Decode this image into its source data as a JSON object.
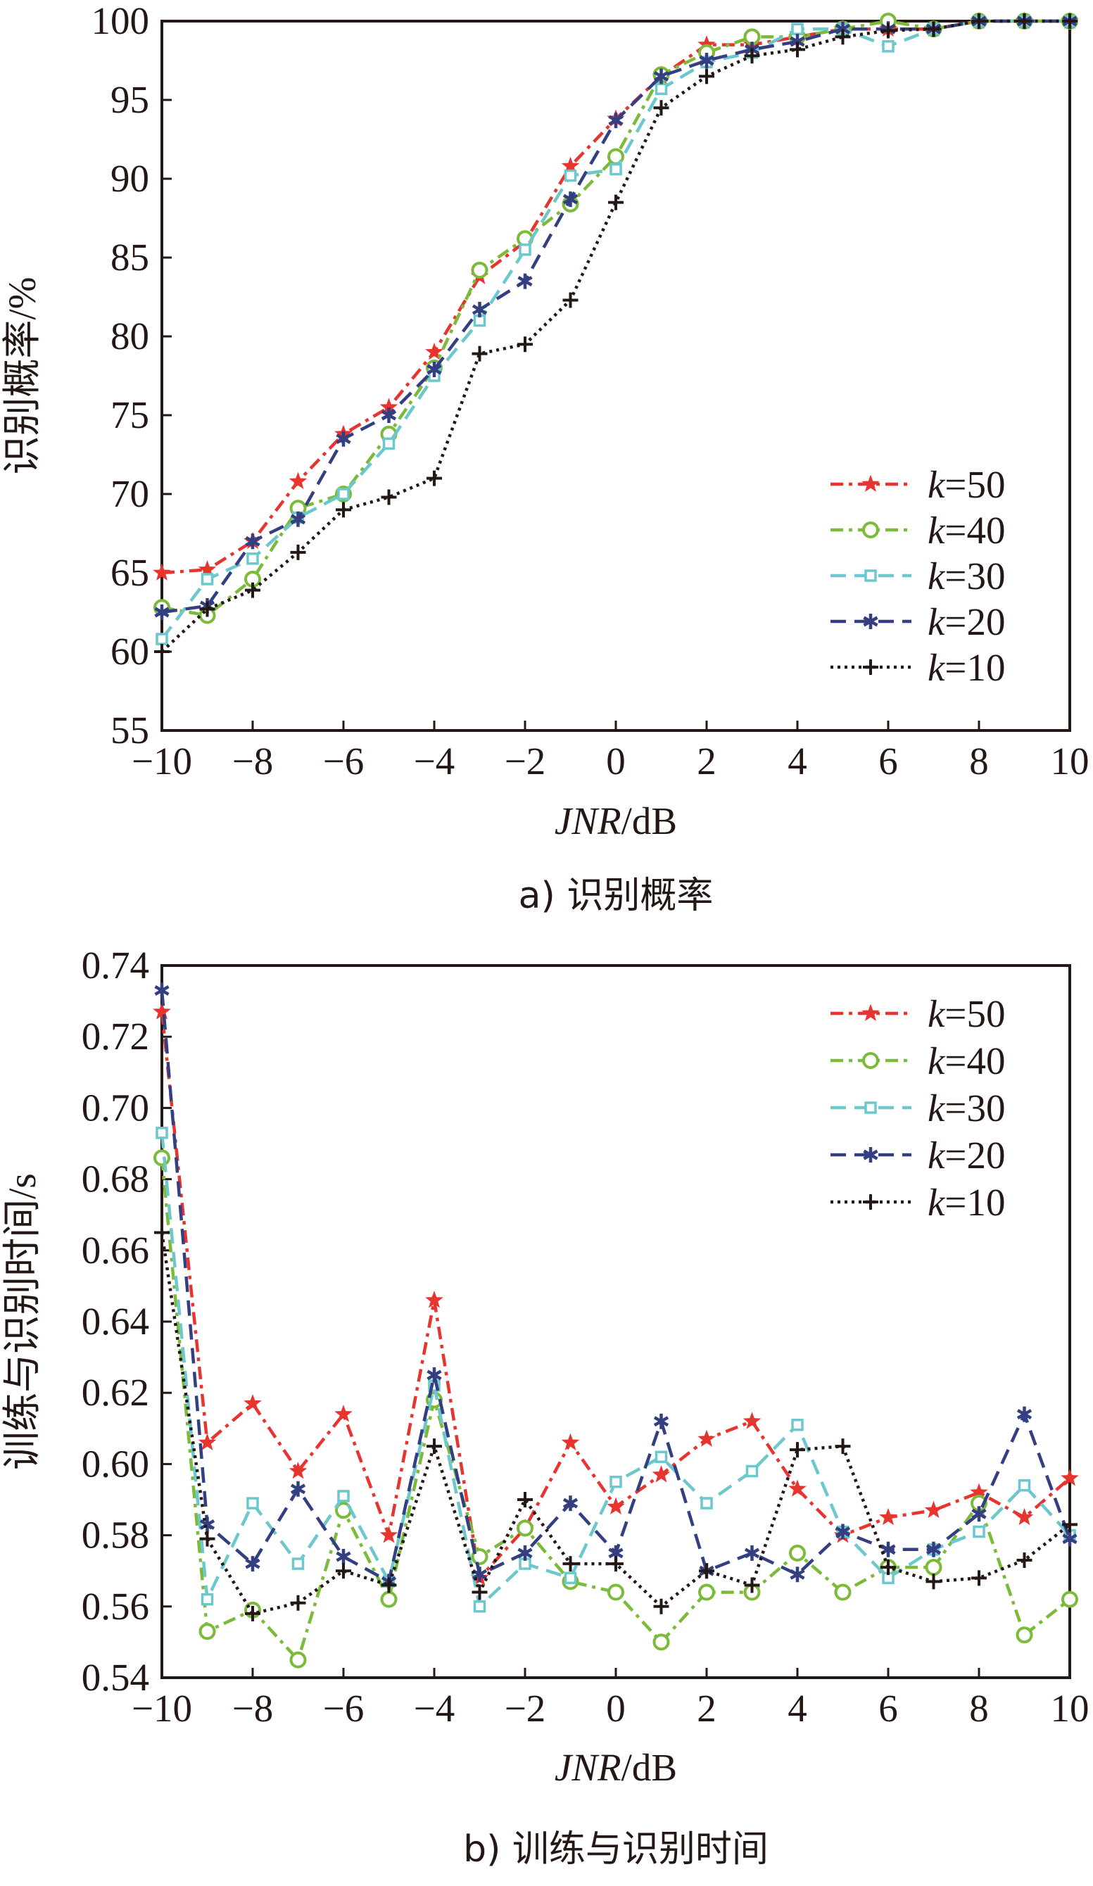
{
  "chart_data": [
    {
      "type": "line",
      "caption": "a) 识别概率",
      "ylabel": "识别概率/%",
      "xlabel_italic": "JNR",
      "xlabel_rest": "/dB",
      "xlim": [
        -10,
        10
      ],
      "ylim": [
        55,
        100
      ],
      "xticks": [
        "−10",
        "−8",
        "−6",
        "−4",
        "−2",
        "0",
        "2",
        "4",
        "6",
        "8",
        "10"
      ],
      "yticks": [
        "55",
        "60",
        "65",
        "70",
        "75",
        "80",
        "85",
        "90",
        "95",
        "100"
      ],
      "legend_position": "lower-right",
      "x": [
        -10,
        -9,
        -8,
        -7,
        -6,
        -5,
        -4,
        -3,
        -2,
        -1,
        0,
        1,
        2,
        3,
        4,
        5,
        6,
        7,
        8,
        9,
        10
      ],
      "series": [
        {
          "name_var": "k",
          "name_val": "=50",
          "color": "#e8342f",
          "marker": "star",
          "dash": "18,8,5,8",
          "values": [
            65.0,
            65.2,
            67.0,
            70.8,
            73.8,
            75.5,
            79.0,
            83.8,
            86.0,
            90.8,
            93.8,
            96.5,
            98.5,
            98.5,
            99.0,
            99.5,
            99.5,
            99.5,
            100,
            100,
            100
          ]
        },
        {
          "name_var": "k",
          "name_val": "=40",
          "color": "#7cba3a",
          "marker": "circle",
          "dash": "18,8,5,8",
          "values": [
            62.8,
            62.3,
            64.6,
            69.1,
            70.0,
            73.8,
            78.0,
            84.2,
            86.2,
            88.4,
            91.4,
            96.6,
            98.0,
            99.0,
            99.0,
            99.5,
            100,
            99.5,
            100,
            100,
            100
          ]
        },
        {
          "name_var": "k",
          "name_val": "=30",
          "color": "#6cc8cc",
          "marker": "square",
          "dash": "22,12",
          "values": [
            60.8,
            64.6,
            65.9,
            68.5,
            70.0,
            73.2,
            77.5,
            81.0,
            85.5,
            90.2,
            90.6,
            95.7,
            97.4,
            98.0,
            99.5,
            99.5,
            98.4,
            99.5,
            100,
            100,
            100
          ]
        },
        {
          "name_var": "k",
          "name_val": "=20",
          "color": "#343f82",
          "marker": "asterisk",
          "dash": "22,12",
          "values": [
            62.5,
            62.9,
            67.0,
            68.4,
            73.5,
            75.0,
            77.9,
            81.7,
            83.5,
            88.7,
            93.7,
            96.5,
            97.5,
            98.2,
            98.7,
            99.5,
            99.5,
            99.5,
            100,
            100,
            100
          ]
        },
        {
          "name_var": "k",
          "name_val": "=10",
          "color": "#231815",
          "marker": "plus",
          "dash": "4,6",
          "values": [
            60.0,
            62.7,
            63.9,
            66.3,
            69.0,
            69.8,
            71.0,
            78.9,
            79.5,
            82.3,
            88.5,
            94.5,
            96.5,
            97.8,
            98.2,
            99.0,
            99.4,
            99.5,
            100,
            100,
            100
          ]
        }
      ]
    },
    {
      "type": "line",
      "caption": "b) 训练与识别时间",
      "ylabel": "训练与识别时间/s",
      "xlabel_italic": "JNR",
      "xlabel_rest": "/dB",
      "xlim": [
        -10,
        10
      ],
      "ylim": [
        0.54,
        0.74
      ],
      "xticks": [
        "−10",
        "−8",
        "−6",
        "−4",
        "−2",
        "0",
        "2",
        "4",
        "6",
        "8",
        "10"
      ],
      "yticks": [
        "0.54",
        "0.56",
        "0.58",
        "0.60",
        "0.62",
        "0.64",
        "0.66",
        "0.68",
        "0.70",
        "0.72",
        "0.74"
      ],
      "legend_position": "top-right",
      "x": [
        -10,
        -9,
        -8,
        -7,
        -6,
        -5,
        -4,
        -3,
        -2,
        -1,
        0,
        1,
        2,
        3,
        4,
        5,
        6,
        7,
        8,
        9,
        10
      ],
      "series": [
        {
          "name_var": "k",
          "name_val": "=50",
          "color": "#e8342f",
          "marker": "star",
          "dash": "18,8,5,8",
          "values": [
            0.727,
            0.606,
            0.617,
            0.598,
            0.614,
            0.58,
            0.646,
            0.568,
            0.582,
            0.606,
            0.588,
            0.597,
            0.607,
            0.612,
            0.593,
            0.58,
            0.585,
            0.587,
            0.592,
            0.585,
            0.596
          ]
        },
        {
          "name_var": "k",
          "name_val": "=40",
          "color": "#7cba3a",
          "marker": "circle",
          "dash": "18,8,5,8",
          "values": [
            0.686,
            0.553,
            0.559,
            0.545,
            0.587,
            0.562,
            0.618,
            0.574,
            0.582,
            0.567,
            0.564,
            0.55,
            0.564,
            0.564,
            0.575,
            0.564,
            0.571,
            0.571,
            0.589,
            0.552,
            0.562
          ]
        },
        {
          "name_var": "k",
          "name_val": "=30",
          "color": "#6cc8cc",
          "marker": "square",
          "dash": "22,12",
          "values": [
            0.693,
            0.562,
            0.589,
            0.572,
            0.591,
            0.567,
            0.622,
            0.56,
            0.572,
            0.568,
            0.595,
            0.602,
            0.589,
            0.598,
            0.611,
            0.581,
            0.568,
            0.576,
            0.581,
            0.594,
            0.58
          ]
        },
        {
          "name_var": "k",
          "name_val": "=20",
          "color": "#343f82",
          "marker": "asterisk",
          "dash": "22,12",
          "values": [
            0.733,
            0.583,
            0.572,
            0.593,
            0.574,
            0.567,
            0.625,
            0.569,
            0.575,
            0.589,
            0.575,
            0.612,
            0.57,
            0.575,
            0.569,
            0.581,
            0.576,
            0.576,
            0.586,
            0.614,
            0.579
          ]
        },
        {
          "name_var": "k",
          "name_val": "=10",
          "color": "#231815",
          "marker": "plus",
          "dash": "4,6",
          "values": [
            0.665,
            0.579,
            0.558,
            0.561,
            0.57,
            0.566,
            0.605,
            0.564,
            0.59,
            0.572,
            0.572,
            0.56,
            0.57,
            0.566,
            0.604,
            0.605,
            0.571,
            0.567,
            0.568,
            0.573,
            0.583
          ]
        }
      ]
    }
  ]
}
